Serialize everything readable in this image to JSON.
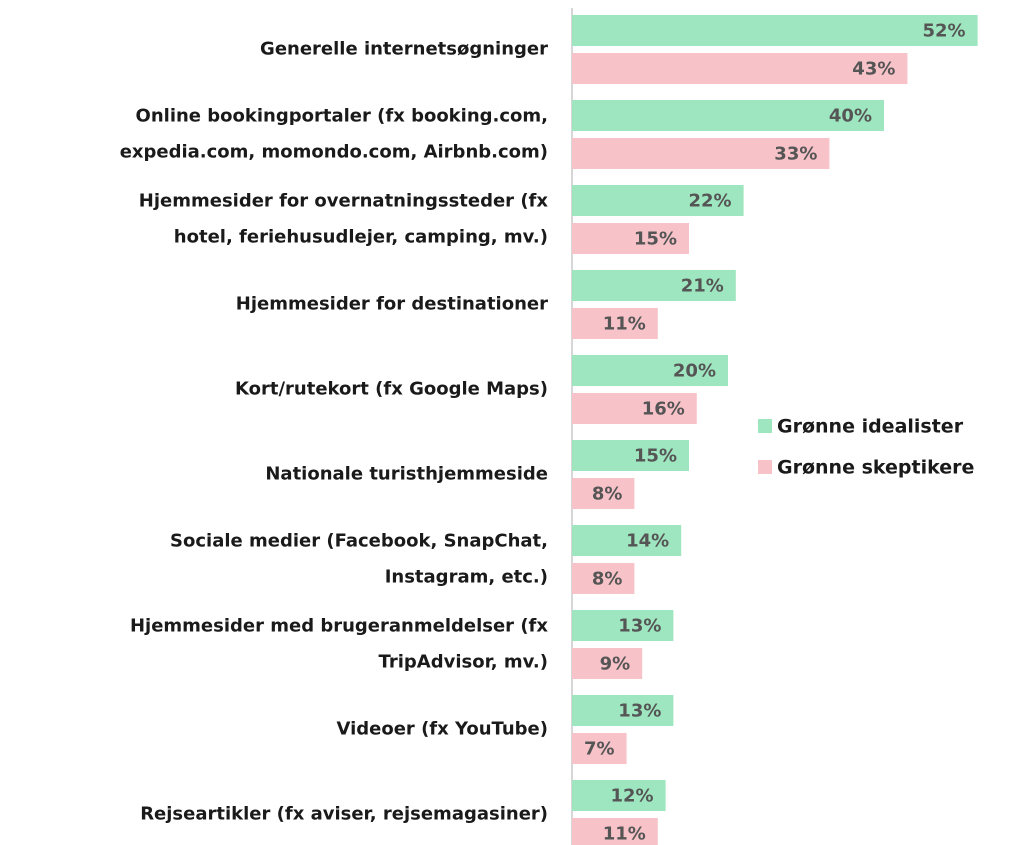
{
  "chart_data": {
    "type": "barh",
    "categories": [
      "Generelle internetsøgninger",
      "Online bookingportaler (fx booking.com,\nexpedia.com, momondo.com, Airbnb.com)",
      "Hjemmesider for overnatningssteder (fx\nhotel, feriehusudlejer, camping, mv.)",
      "Hjemmesider for destinationer",
      "Kort/rutekort (fx Google Maps)",
      "Nationale turisthjemmeside",
      "Sociale medier (Facebook, SnapChat,\nInstagram, etc.)",
      "Hjemmesider med brugeranmeldelser (fx\nTripAdvisor, mv.)",
      "Videoer (fx YouTube)",
      "Rejseartikler (fx aviser, rejsemagasiner)"
    ],
    "series": [
      {
        "name": "Grønne idealister",
        "color": "#9ee6bf",
        "values": [
          52,
          40,
          22,
          21,
          20,
          15,
          14,
          13,
          13,
          12
        ],
        "value_labels": [
          "52%",
          "40%",
          "22%",
          "21%",
          "20%",
          "15%",
          "14%",
          "13%",
          "13%",
          "12%"
        ]
      },
      {
        "name": "Grønne skeptikere",
        "color": "#f7c3c9",
        "values": [
          43,
          33,
          15,
          11,
          16,
          8,
          8,
          9,
          7,
          11
        ],
        "value_labels": [
          "43%",
          "33%",
          "15%",
          "11%",
          "16%",
          "8%",
          "8%",
          "9%",
          "7%",
          "11%"
        ]
      }
    ],
    "legend": "right"
  }
}
